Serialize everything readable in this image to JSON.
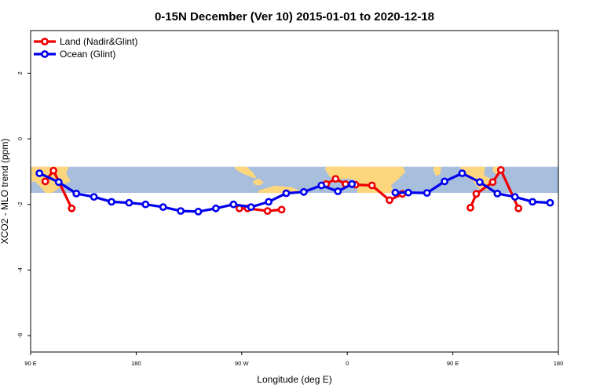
{
  "chart_data": {
    "type": "line",
    "title": "0-15N December (Ver 10)   2015-01-01 to 2020-12-18",
    "xlabel": "Longitude (deg E)",
    "ylabel": "XCO2 - MLO trend (ppm)",
    "xlim": [
      90,
      540
    ],
    "ylim": [
      -6.5,
      3.3
    ],
    "x_ticks": [
      {
        "value": 90,
        "label": "90 E"
      },
      {
        "value": 180,
        "label": "180"
      },
      {
        "value": 270,
        "label": "90 W"
      },
      {
        "value": 360,
        "label": "0"
      },
      {
        "value": 450,
        "label": "90 E"
      },
      {
        "value": 540,
        "label": "180"
      }
    ],
    "y_ticks": [
      {
        "value": 2,
        "label": "2"
      },
      {
        "value": 0,
        "label": "0"
      },
      {
        "value": -2,
        "label": "-2"
      },
      {
        "value": -4,
        "label": "-4"
      },
      {
        "value": -6,
        "label": "-6"
      }
    ],
    "map_strip": {
      "y_top": -0.85,
      "y_bottom": -1.65,
      "ocean_color": "#a8bedd",
      "land_color": "#fdd67d"
    },
    "series": [
      {
        "name": "Land (Nadir&Glint)",
        "color": "#ee0000",
        "segments": [
          [
            [
              102.5,
              -1.3
            ],
            [
              109.5,
              -0.97
            ],
            [
              125,
              -2.12
            ]
          ],
          [
            [
              268,
              -2.12
            ],
            [
              275,
              -2.12
            ],
            [
              292,
              -2.2
            ],
            [
              304,
              -2.16
            ]
          ],
          [
            [
              342,
              -1.38
            ],
            [
              350,
              -1.22
            ],
            [
              358.5,
              -1.38
            ],
            [
              367,
              -1.4
            ],
            [
              381,
              -1.42
            ],
            [
              396,
              -1.87
            ],
            [
              407,
              -1.68
            ]
          ],
          [
            [
              465,
              -2.1
            ],
            [
              470,
              -1.68
            ],
            [
              484,
              -1.32
            ],
            [
              491,
              -0.95
            ],
            [
              506,
              -2.12
            ]
          ]
        ]
      },
      {
        "name": "Ocean (Glint)",
        "color": "#0000ee",
        "segments": [
          [
            [
              97.5,
              -1.05
            ],
            [
              114,
              -1.32
            ],
            [
              129,
              -1.67
            ],
            [
              144,
              -1.77
            ],
            [
              159,
              -1.92
            ],
            [
              174,
              -1.95
            ],
            [
              188,
              -2.0
            ],
            [
              203,
              -2.08
            ],
            [
              218,
              -2.2
            ],
            [
              233,
              -2.22
            ],
            [
              248,
              -2.12
            ],
            [
              263,
              -2.0
            ],
            [
              278,
              -2.08
            ],
            [
              293,
              -1.92
            ],
            [
              308,
              -1.66
            ],
            [
              323,
              -1.62
            ],
            [
              338,
              -1.42
            ],
            [
              352,
              -1.6
            ],
            [
              364,
              -1.38
            ]
          ],
          [
            [
              401,
              -1.64
            ],
            [
              412,
              -1.64
            ],
            [
              428,
              -1.65
            ],
            [
              443,
              -1.3
            ],
            [
              458,
              -1.05
            ],
            [
              473,
              -1.32
            ],
            [
              488,
              -1.67
            ],
            [
              503,
              -1.77
            ],
            [
              518,
              -1.92
            ],
            [
              533,
              -1.95
            ]
          ]
        ]
      }
    ],
    "legend": {
      "position": "top-left"
    }
  }
}
